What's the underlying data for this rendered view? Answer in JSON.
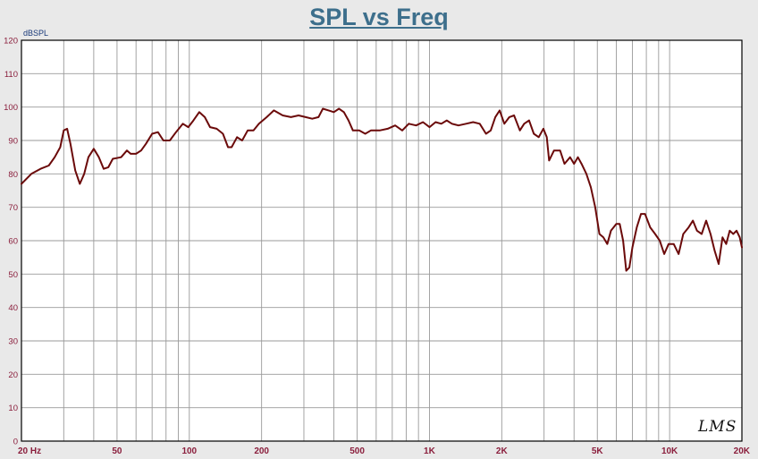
{
  "chart_data": {
    "type": "line",
    "title": "SPL vs Freq",
    "ylabel": "dBSPL",
    "xlabel": "",
    "x_scale": "log",
    "xlim": [
      20,
      20000
    ],
    "ylim": [
      0,
      120
    ],
    "grid": true,
    "y_ticks": [
      0,
      10,
      20,
      30,
      40,
      50,
      60,
      70,
      80,
      90,
      100,
      110,
      120
    ],
    "x_ticks": [
      {
        "value": 20,
        "label": "20  Hz"
      },
      {
        "value": 50,
        "label": "50"
      },
      {
        "value": 100,
        "label": "100"
      },
      {
        "value": 200,
        "label": "200"
      },
      {
        "value": 500,
        "label": "500"
      },
      {
        "value": 1000,
        "label": "1K"
      },
      {
        "value": 2000,
        "label": "2K"
      },
      {
        "value": 5000,
        "label": "5K"
      },
      {
        "value": 10000,
        "label": "10K"
      },
      {
        "value": 20000,
        "label": "20K"
      }
    ],
    "watermark": "LMS",
    "series": [
      {
        "color": "#6b0a0a",
        "points": [
          [
            20,
            77
          ],
          [
            22,
            80
          ],
          [
            24,
            81.5
          ],
          [
            26,
            82.5
          ],
          [
            27.5,
            85
          ],
          [
            29,
            88
          ],
          [
            30,
            93
          ],
          [
            31,
            93.5
          ],
          [
            32,
            89
          ],
          [
            33.5,
            81
          ],
          [
            35,
            77
          ],
          [
            36.5,
            80
          ],
          [
            38,
            85
          ],
          [
            40,
            87.5
          ],
          [
            42,
            85
          ],
          [
            44,
            81.5
          ],
          [
            46,
            82
          ],
          [
            48,
            84.5
          ],
          [
            52,
            85
          ],
          [
            55,
            87
          ],
          [
            57,
            86
          ],
          [
            60,
            86
          ],
          [
            63,
            87
          ],
          [
            66,
            89
          ],
          [
            70,
            92
          ],
          [
            74,
            92.5
          ],
          [
            78,
            90
          ],
          [
            83,
            90
          ],
          [
            88,
            92.5
          ],
          [
            94,
            95
          ],
          [
            99,
            94
          ],
          [
            104,
            96
          ],
          [
            110,
            98.5
          ],
          [
            116,
            97
          ],
          [
            122,
            94
          ],
          [
            130,
            93.5
          ],
          [
            138,
            92
          ],
          [
            145,
            88
          ],
          [
            150,
            88
          ],
          [
            158,
            91
          ],
          [
            166,
            90
          ],
          [
            175,
            93
          ],
          [
            185,
            93
          ],
          [
            195,
            95
          ],
          [
            210,
            97
          ],
          [
            225,
            99
          ],
          [
            245,
            97.5
          ],
          [
            265,
            97
          ],
          [
            285,
            97.5
          ],
          [
            305,
            97
          ],
          [
            325,
            96.5
          ],
          [
            345,
            97
          ],
          [
            360,
            99.5
          ],
          [
            380,
            99
          ],
          [
            400,
            98.5
          ],
          [
            420,
            99.5
          ],
          [
            440,
            98.5
          ],
          [
            460,
            96
          ],
          [
            480,
            93
          ],
          [
            510,
            93
          ],
          [
            540,
            92
          ],
          [
            570,
            93
          ],
          [
            620,
            93
          ],
          [
            670,
            93.5
          ],
          [
            720,
            94.5
          ],
          [
            770,
            93
          ],
          [
            820,
            95
          ],
          [
            880,
            94.5
          ],
          [
            940,
            95.5
          ],
          [
            1000,
            94
          ],
          [
            1060,
            95.5
          ],
          [
            1120,
            95
          ],
          [
            1180,
            96
          ],
          [
            1240,
            95
          ],
          [
            1320,
            94.5
          ],
          [
            1420,
            95
          ],
          [
            1520,
            95.5
          ],
          [
            1620,
            95
          ],
          [
            1720,
            92
          ],
          [
            1800,
            93
          ],
          [
            1880,
            97
          ],
          [
            1960,
            99
          ],
          [
            2050,
            95
          ],
          [
            2150,
            97
          ],
          [
            2250,
            97.5
          ],
          [
            2380,
            93
          ],
          [
            2480,
            95
          ],
          [
            2600,
            96
          ],
          [
            2720,
            92
          ],
          [
            2850,
            91
          ],
          [
            2980,
            93.5
          ],
          [
            3080,
            91
          ],
          [
            3150,
            84
          ],
          [
            3300,
            87
          ],
          [
            3500,
            87
          ],
          [
            3650,
            83
          ],
          [
            3850,
            85
          ],
          [
            4000,
            83
          ],
          [
            4150,
            85
          ],
          [
            4300,
            83
          ],
          [
            4500,
            80
          ],
          [
            4700,
            76
          ],
          [
            4900,
            70
          ],
          [
            5100,
            62
          ],
          [
            5300,
            61
          ],
          [
            5500,
            59
          ],
          [
            5700,
            63
          ],
          [
            6000,
            65
          ],
          [
            6200,
            65
          ],
          [
            6400,
            60
          ],
          [
            6600,
            51
          ],
          [
            6800,
            52
          ],
          [
            7000,
            58
          ],
          [
            7300,
            64
          ],
          [
            7600,
            68
          ],
          [
            7900,
            68
          ],
          [
            8300,
            64
          ],
          [
            8700,
            62
          ],
          [
            9100,
            60
          ],
          [
            9500,
            56
          ],
          [
            9900,
            59
          ],
          [
            10400,
            59
          ],
          [
            10900,
            56
          ],
          [
            11400,
            62
          ],
          [
            12000,
            64
          ],
          [
            12500,
            66
          ],
          [
            13000,
            63
          ],
          [
            13600,
            62
          ],
          [
            14200,
            66
          ],
          [
            14800,
            62
          ],
          [
            15400,
            57
          ],
          [
            16000,
            53
          ],
          [
            16600,
            61
          ],
          [
            17200,
            59
          ],
          [
            17800,
            63
          ],
          [
            18400,
            62
          ],
          [
            19000,
            63
          ],
          [
            19600,
            61
          ],
          [
            20000,
            58
          ]
        ]
      }
    ],
    "colors": {
      "background": "#e9e9e9",
      "plot_background": "#ffffff",
      "grid": "#9a9a9a",
      "title": "#3d6f8c",
      "tick_labels": "#8a1e3c",
      "unit_label": "#1a3a7a",
      "trace": "#6b0a0a"
    }
  }
}
